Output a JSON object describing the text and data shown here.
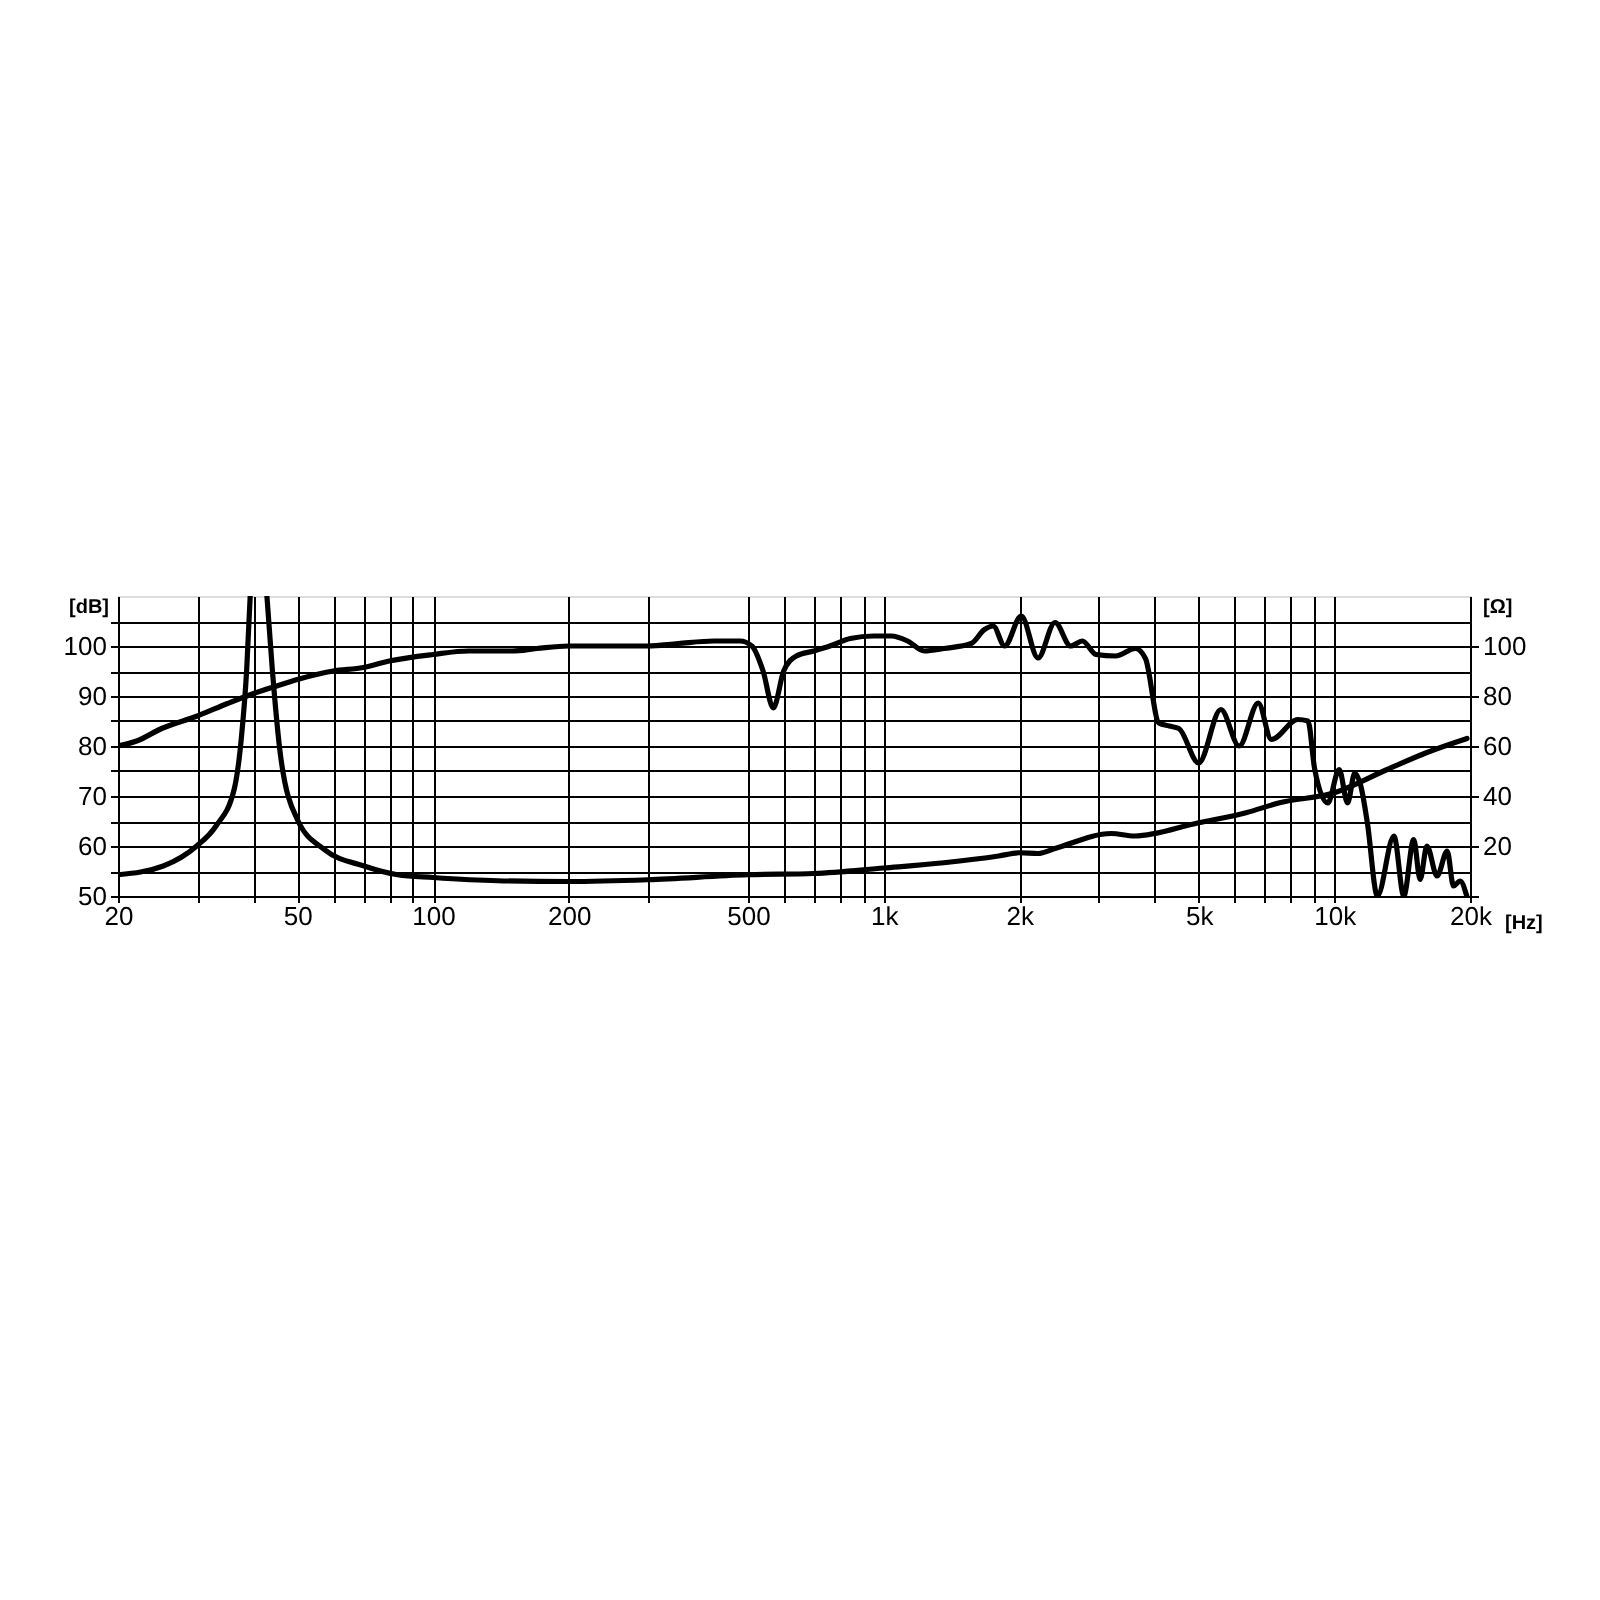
{
  "chart_data": {
    "type": "line",
    "xlabel": "[Hz]",
    "ylabel": "[dB]",
    "y2label": "[Ω]",
    "log": "x",
    "grid": true,
    "xlim": [
      20,
      20000
    ],
    "xticks": [
      20,
      {
        "value": 30,
        "label": null
      },
      {
        "value": 40,
        "label": null
      },
      50,
      {
        "value": 60,
        "label": null
      },
      {
        "value": 70,
        "label": null
      },
      {
        "value": 80,
        "label": null
      },
      {
        "value": 90,
        "label": null
      },
      100,
      200,
      {
        "value": 300,
        "label": null
      },
      500,
      {
        "value": 600,
        "label": null
      },
      {
        "value": 700,
        "label": null
      },
      {
        "value": 800,
        "label": null
      },
      {
        "value": 900,
        "label": null
      },
      {
        "value": 1000,
        "label": "1k"
      },
      {
        "value": 2000,
        "label": "2k"
      },
      {
        "value": 3000,
        "label": null
      },
      {
        "value": 4000,
        "label": null
      },
      {
        "value": 5000,
        "label": "5k"
      },
      {
        "value": 6000,
        "label": null
      },
      {
        "value": 7000,
        "label": null
      },
      {
        "value": 8000,
        "label": null
      },
      {
        "value": 9000,
        "label": null
      },
      {
        "value": 10000,
        "label": "10k"
      },
      {
        "value": 20000,
        "label": "20k"
      }
    ],
    "ylim": [
      50,
      110
    ],
    "yticks": [
      50,
      {
        "value": 55,
        "label": null
      },
      60,
      {
        "value": 65,
        "label": null
      },
      70,
      {
        "value": 75,
        "label": null
      },
      80,
      {
        "value": 85,
        "label": null
      },
      90,
      {
        "value": 95,
        "label": null
      },
      100,
      {
        "value": 105,
        "label": null
      }
    ],
    "y2lim": [
      0,
      120
    ],
    "y2ticks": [
      {
        "value": 0,
        "label": null
      },
      20,
      40,
      60,
      80,
      100
    ],
    "series": [
      {
        "color": "#000000",
        "x": [
          20,
          22,
          25,
          30,
          35,
          40,
          45,
          50,
          60,
          70,
          80,
          100,
          120,
          150,
          170,
          200,
          250,
          300,
          350,
          420,
          480,
          510,
          540,
          569,
          600,
          640,
          700,
          760,
          843,
          950,
          1040,
          1130,
          1230,
          1364,
          1564,
          1674,
          1750,
          1855,
          2020,
          2200,
          2400,
          2600,
          2760,
          2960,
          3270,
          3620,
          3810,
          4080,
          4300,
          4520,
          5000,
          5600,
          6150,
          6780,
          7250,
          8300,
          8740,
          9040,
          9670,
          10250,
          10700,
          11100,
          11450,
          11840,
          12460,
          13560,
          14260,
          15000,
          15500,
          16050,
          16900,
          17800,
          18380,
          19010,
          19670
        ],
        "values": [
          80,
          81,
          83.5,
          86,
          88.5,
          90.5,
          92,
          93.3,
          95,
          95.7,
          97,
          98.3,
          99,
          99,
          99.5,
          100,
          100,
          100,
          100.5,
          101,
          101,
          100,
          95,
          87.6,
          95,
          98,
          99,
          100,
          101.5,
          102,
          102,
          101,
          99,
          99.5,
          100.5,
          103.3,
          104,
          100,
          106,
          97.6,
          104.7,
          100,
          101,
          98.3,
          98,
          99.5,
          97.5,
          84.6,
          84,
          83.5,
          76.6,
          87.3,
          80,
          88.6,
          81.3,
          85.3,
          85,
          75.5,
          68.6,
          75.3,
          68.6,
          74.6,
          72,
          64.6,
          50,
          62,
          50,
          61.3,
          53.3,
          60,
          54,
          59,
          52,
          53,
          50
        ]
      },
      {
        "color": "#000000",
        "axis": "y2",
        "x": [
          20,
          25.2,
          29.9,
          33,
          36.2,
          37.6,
          38.6,
          39.3,
          41,
          42.8,
          44,
          45.9,
          50,
          57.4,
          70.3,
          83.4,
          100,
          139,
          200,
          300,
          500,
          700,
          1000,
          1360,
          1800,
          2000,
          2200,
          2400,
          3200,
          3600,
          5000,
          6370,
          7560,
          10000,
          13100,
          16000,
          19700
        ],
        "values": [
          8.5,
          12,
          20,
          28,
          42.6,
          64,
          90.6,
          120,
          null,
          120,
          90.6,
          56,
          30.6,
          18.6,
          12,
          8.5,
          7.4,
          6.1,
          5.8,
          6.5,
          8.5,
          9,
          11.2,
          13.3,
          16,
          17.3,
          17,
          19,
          25,
          24,
          29.3,
          33.3,
          37.3,
          41.3,
          50.6,
          57.3,
          63
        ]
      }
    ]
  }
}
